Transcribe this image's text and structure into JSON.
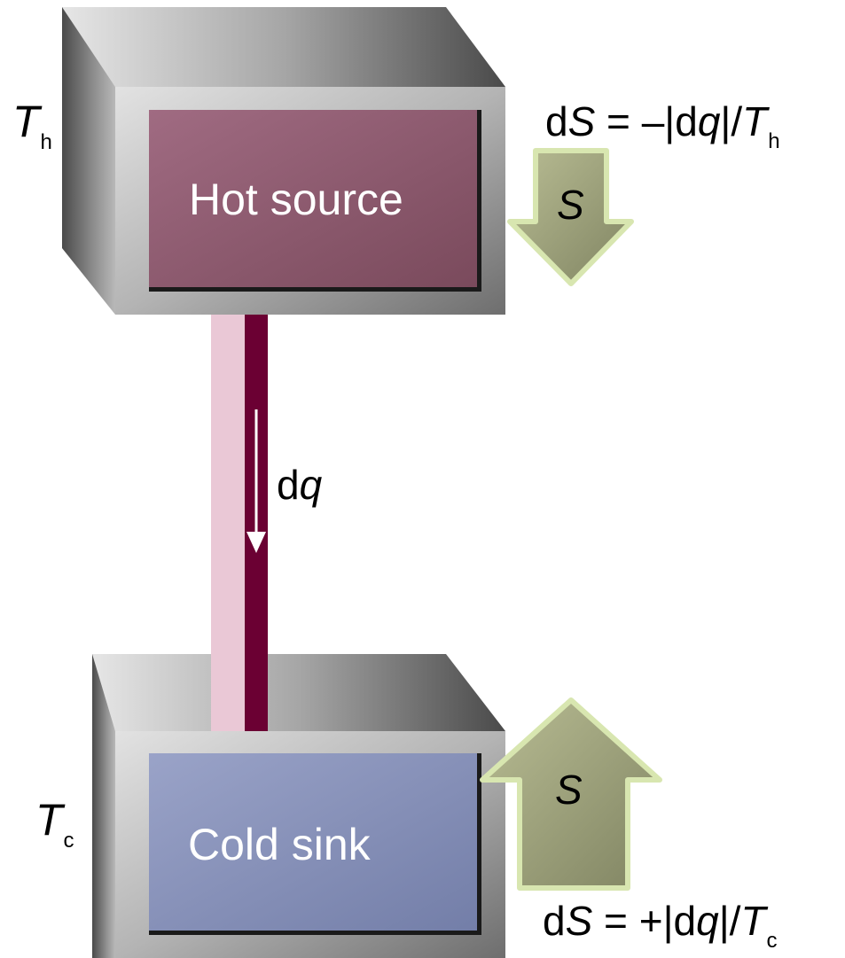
{
  "hot_box": {
    "title": "Hot source",
    "temperature_symbol": "T",
    "temperature_subscript": "h"
  },
  "cold_box": {
    "title": "Cold sink",
    "temperature_symbol": "T",
    "temperature_subscript": "c"
  },
  "heat_flow": {
    "d": "d",
    "q": "q"
  },
  "hot_entropy": {
    "arrow_label": "S",
    "eq_d": "d",
    "eq_S": "S",
    "eq_middle": " = –|d",
    "eq_q": "q",
    "eq_slash": "|/",
    "eq_T": "T",
    "eq_sub": "h"
  },
  "cold_entropy": {
    "arrow_label": "S",
    "eq_d": "d",
    "eq_S": "S",
    "eq_middle": " = +|d",
    "eq_q": "q",
    "eq_slash": "|/",
    "eq_T": "T",
    "eq_sub": "c"
  },
  "colors": {
    "hot_panel": "#8a5568",
    "cold_panel": "#8791b6",
    "conductor_dark": "#6b0033",
    "conductor_light": "#eac8d6",
    "entropy_arrow": "#9ea07a",
    "entropy_arrow_border": "#d8e6b0"
  }
}
